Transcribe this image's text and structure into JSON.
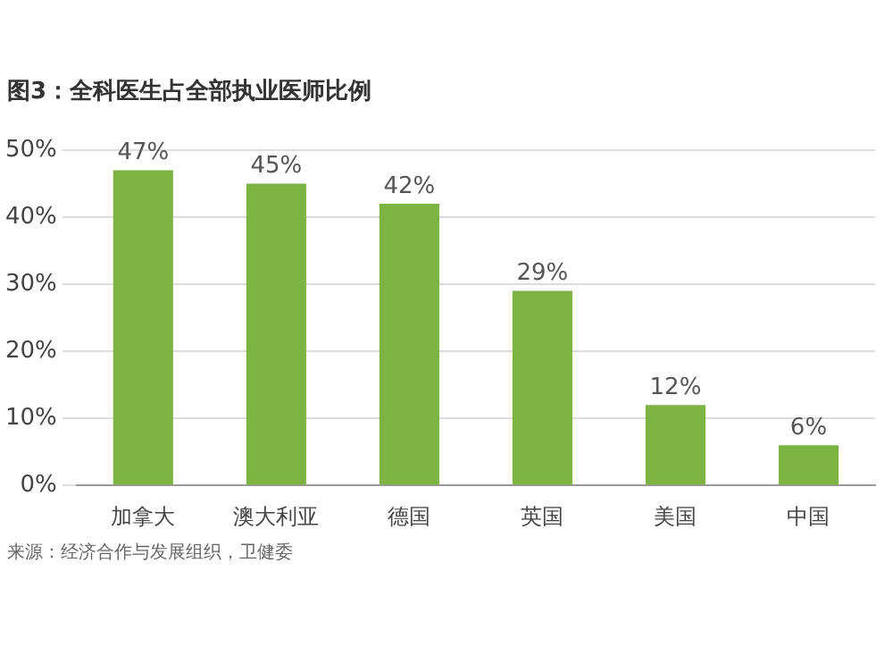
{
  "chart_data": {
    "type": "bar",
    "title": "图3：全科医生占全部执业医师比例",
    "categories": [
      "加拿大",
      "澳大利亚",
      "德国",
      "英国",
      "美国",
      "中国"
    ],
    "values": [
      47,
      45,
      42,
      29,
      12,
      6
    ],
    "value_labels": [
      "47%",
      "45%",
      "42%",
      "29%",
      "12%",
      "6%"
    ],
    "color": "#7cb342",
    "ylim": [
      0,
      50
    ],
    "yticks": [
      {
        "value": 0,
        "label": "0%"
      },
      {
        "value": 10,
        "label": "10%"
      },
      {
        "value": 20,
        "label": "20%"
      },
      {
        "value": 30,
        "label": "30%"
      },
      {
        "value": 40,
        "label": "40%"
      },
      {
        "value": 50,
        "label": "50%"
      }
    ],
    "grid": "y",
    "annotations": [
      "来源：经济合作与发展组织，卫健委"
    ]
  }
}
